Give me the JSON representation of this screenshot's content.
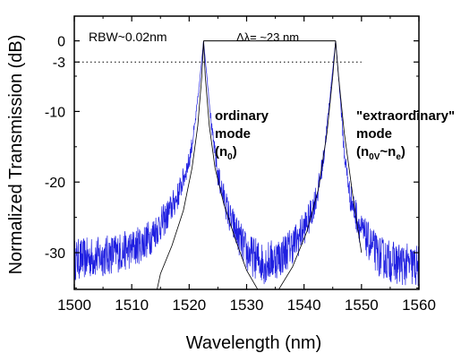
{
  "chart_data": {
    "type": "line",
    "xlabel": "Wavelength (nm)",
    "ylabel": "Normalized Transmission (dB)",
    "xlim": [
      1500,
      1560
    ],
    "ylim": [
      -35.2,
      3.5
    ],
    "x_ticks": [
      1500,
      1510,
      1520,
      1530,
      1540,
      1550,
      1560
    ],
    "y_ticks": [
      0,
      -3,
      -10,
      -20,
      -30
    ],
    "grid": false,
    "reference_line": {
      "y": -3,
      "style": "dotted",
      "x_range": [
        1500,
        1550
      ]
    },
    "peaks": [
      {
        "x": 1522.5,
        "y": 0
      },
      {
        "x": 1545.5,
        "y": 0
      }
    ],
    "series": [
      {
        "color": "#1f1fe0",
        "style": "noisy-measured",
        "x": [
          1500,
          1505,
          1510,
          1513,
          1516,
          1518,
          1520,
          1521,
          1521.8,
          1522.5,
          1523.2,
          1524,
          1525,
          1527,
          1530,
          1533,
          1536,
          1539,
          1541,
          1542.5,
          1543.5,
          1544.5,
          1545.5,
          1546.3,
          1547,
          1548,
          1550,
          1553,
          1556,
          1560
        ],
        "y": [
          -31,
          -30.5,
          -29.5,
          -28,
          -25,
          -22,
          -17,
          -12,
          -6,
          0,
          -6,
          -13,
          -19,
          -25,
          -30,
          -31.5,
          -30.5,
          -28,
          -25,
          -21,
          -16,
          -8,
          0,
          -8,
          -16,
          -22,
          -27,
          -30.5,
          -31.5,
          -32
        ]
      },
      {
        "color": "#000000",
        "style": "thin-fit",
        "x": [
          1514.2,
          1515,
          1517,
          1519,
          1520.5,
          1521.5,
          1522.2,
          1522.5,
          1522.8,
          1523.5,
          1524.5,
          1526,
          1528,
          1530,
          1532.5,
          1535,
          1538,
          1540.5,
          1542.5,
          1544,
          1545,
          1545.5,
          1546,
          1547,
          1548.5,
          1550
        ],
        "y": [
          -36,
          -33,
          -29,
          -24,
          -18,
          -12,
          -5,
          0,
          -5,
          -12,
          -18,
          -23,
          -28,
          -32.5,
          -36,
          -36,
          -32,
          -27,
          -21,
          -13,
          -5,
          0,
          -5,
          -13,
          -22,
          -30
        ]
      }
    ],
    "annotations": [
      {
        "id": "rbw",
        "text": "RBW~0.02nm"
      },
      {
        "id": "delta",
        "text": "Δλ= ~23 nm"
      },
      {
        "id": "ordinary",
        "lines": [
          "ordinary",
          "mode"
        ],
        "index_label": {
          "base": "(n",
          "sub1": "0",
          "mid": "",
          "sub2": "",
          "close": ")"
        }
      },
      {
        "id": "extraordinary",
        "lines": [
          "\"extraordinary\"",
          "mode"
        ],
        "index_label": {
          "base": "(n",
          "sub1": "0V",
          "mid": "~n",
          "sub2": "e",
          "close": ")"
        }
      }
    ]
  }
}
